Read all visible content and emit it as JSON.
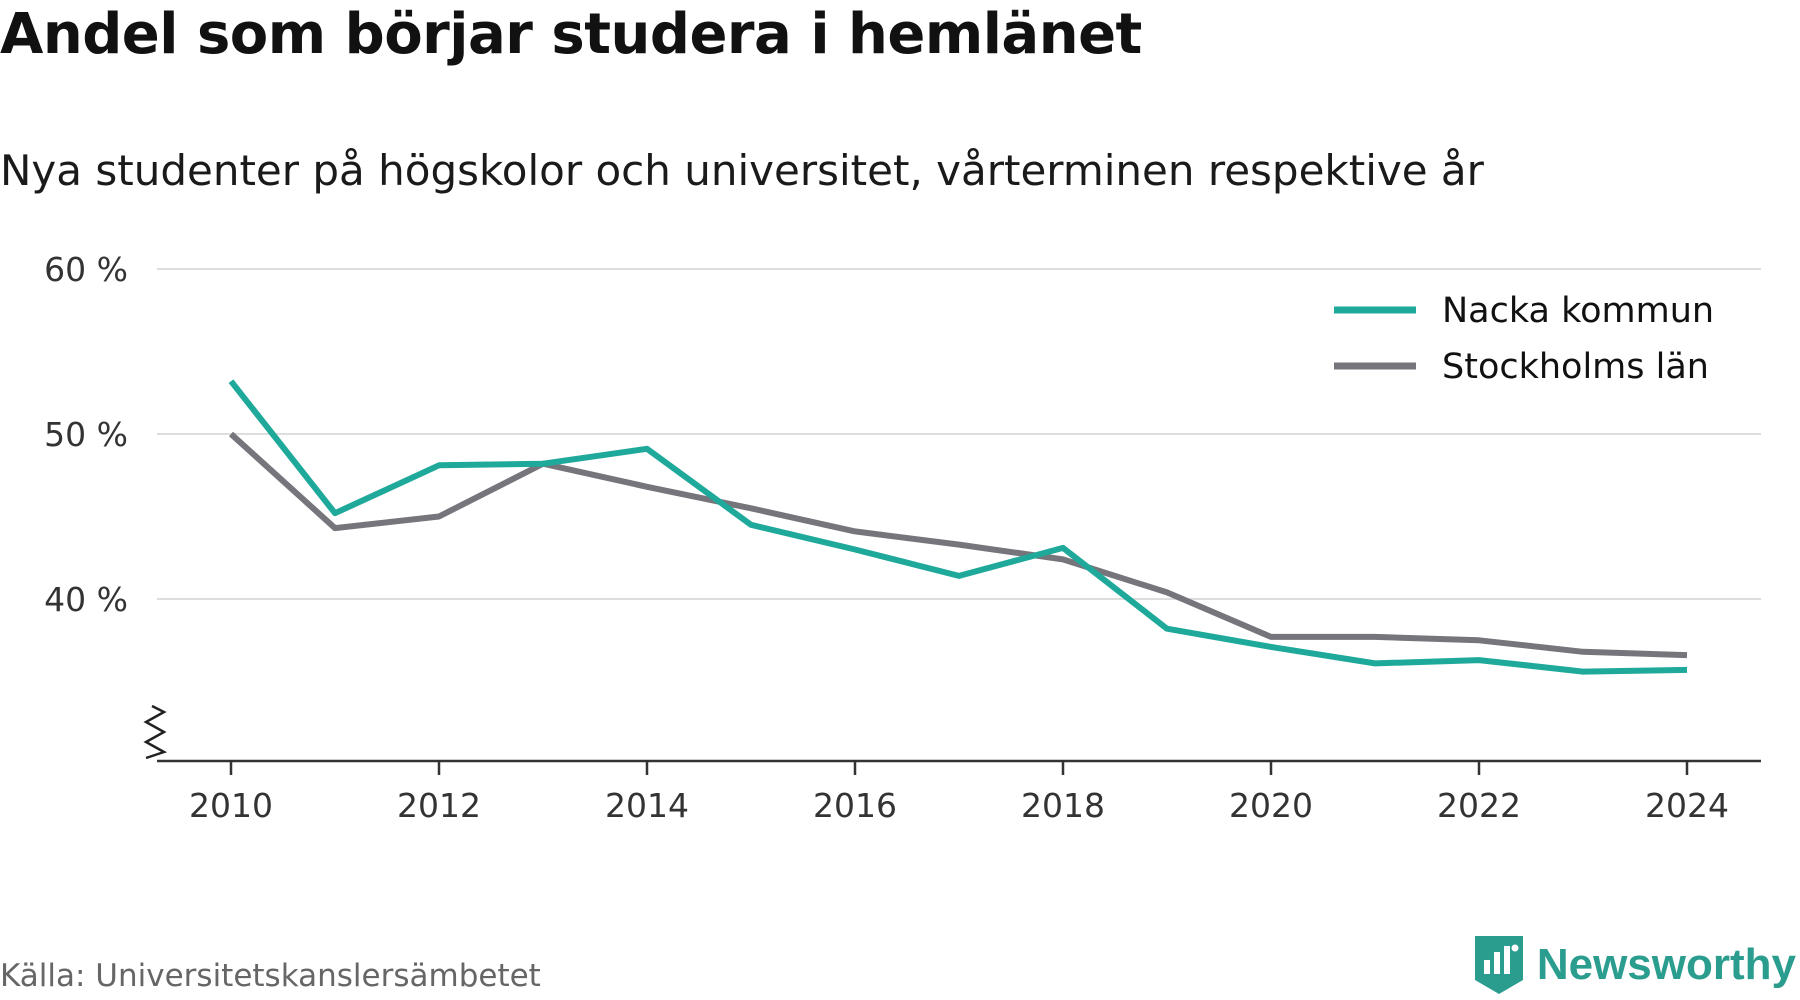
{
  "title": "Andel som börjar studera i hemlänet",
  "subtitle": "Nya studenter på högskolor och universitet, vårterminen respektive år",
  "source": "Källa: Universitetskanslersämbetet",
  "brand": "Newsworthy",
  "colors": {
    "accent": "#1fa99b",
    "secondary": "#76757b",
    "grid": "#dddddd",
    "axis": "#333333",
    "brand": "#2a9d8f"
  },
  "chart_data": {
    "type": "line",
    "x": [
      2010,
      2011,
      2012,
      2013,
      2014,
      2015,
      2016,
      2017,
      2018,
      2019,
      2020,
      2021,
      2022,
      2023,
      2024
    ],
    "series": [
      {
        "name": "Nacka kommun",
        "color": "#1fa99b",
        "values": [
          53.2,
          45.2,
          48.1,
          48.2,
          49.1,
          44.5,
          43.0,
          41.4,
          43.1,
          38.2,
          37.1,
          36.1,
          36.3,
          35.6,
          35.7
        ]
      },
      {
        "name": "Stockholms län",
        "color": "#76757b",
        "values": [
          50.0,
          44.3,
          45.0,
          48.2,
          46.8,
          45.5,
          44.1,
          43.3,
          42.4,
          40.4,
          37.7,
          37.7,
          37.5,
          36.8,
          36.6
        ]
      }
    ],
    "yticks": [
      40,
      50,
      60
    ],
    "ytick_labels": [
      "40 %",
      "50 %",
      "60 %"
    ],
    "xticks": [
      2010,
      2012,
      2014,
      2016,
      2018,
      2020,
      2022,
      2024
    ],
    "xtick_labels": [
      "2010",
      "2012",
      "2014",
      "2016",
      "2018",
      "2020",
      "2022",
      "2024"
    ],
    "ylim": [
      30,
      60
    ],
    "y_axis_break": true,
    "grid": true,
    "legend_position": "top-right"
  }
}
